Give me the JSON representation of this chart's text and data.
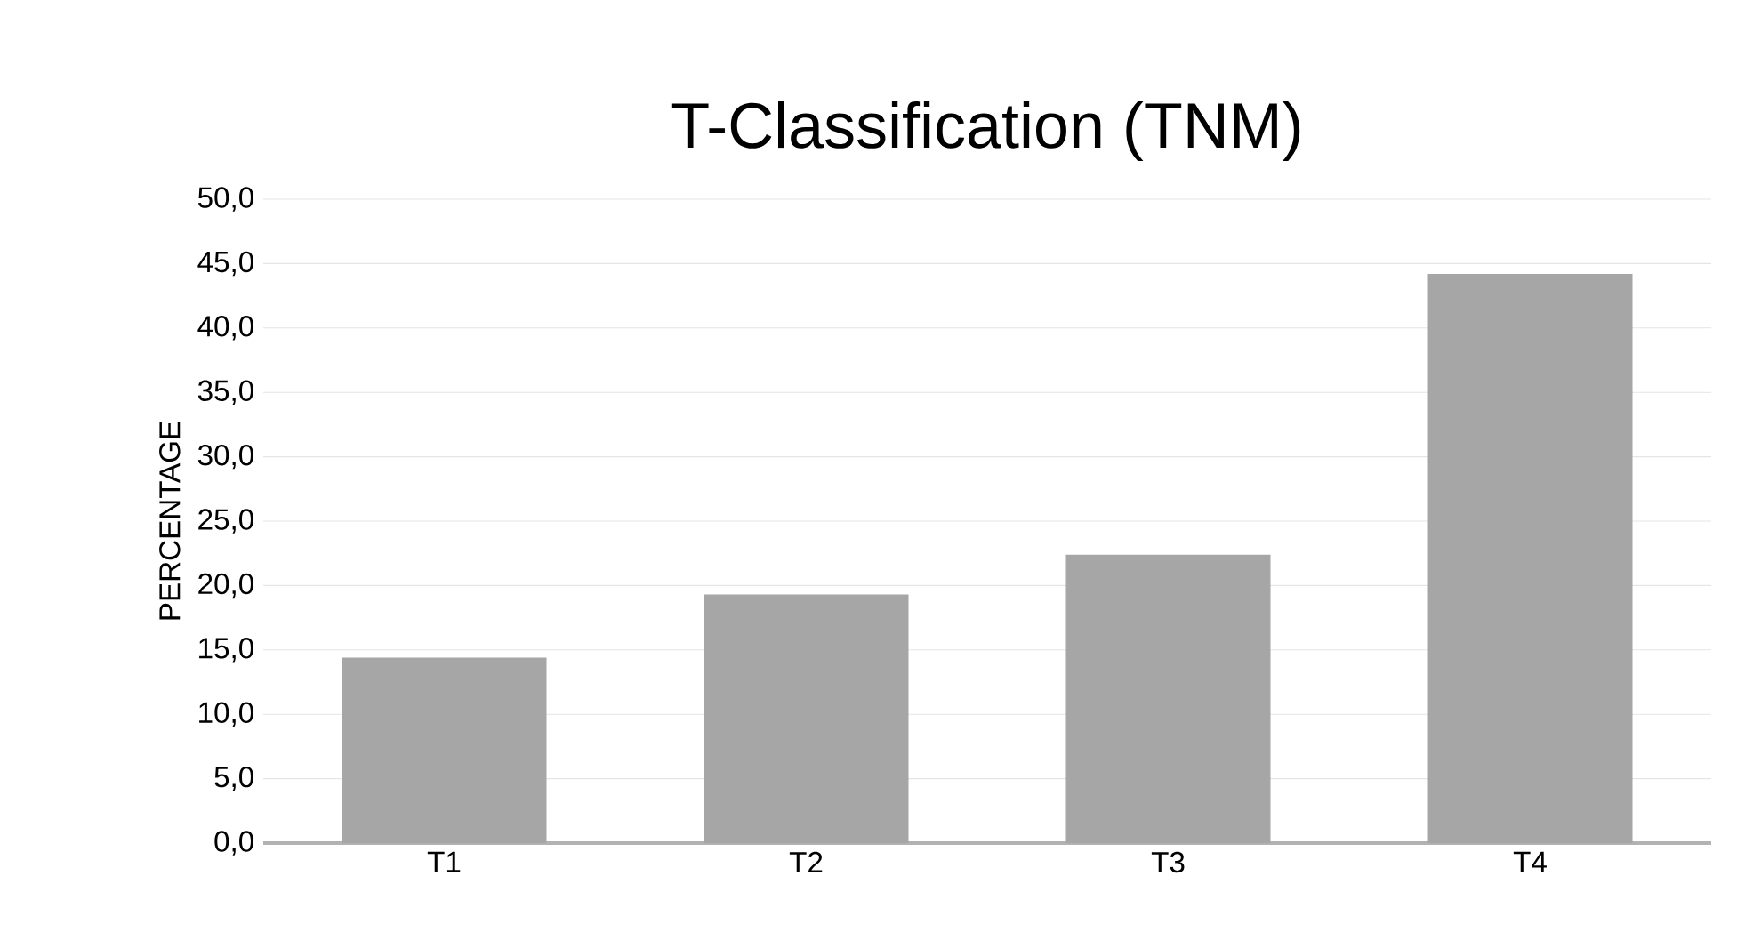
{
  "chart_data": {
    "type": "bar",
    "title": "T-Classification (TNM)",
    "ylabel": "PERCENTAGE",
    "categories": [
      "T1",
      "T2",
      "T3",
      "T4"
    ],
    "values": [
      14.4,
      19.3,
      22.4,
      44.2
    ],
    "color": "#a6a6a6",
    "ylim": [
      0,
      50
    ],
    "yticks": [
      {
        "value": 0,
        "label": "0,0"
      },
      {
        "value": 5,
        "label": "5,0"
      },
      {
        "value": 10,
        "label": "10,0"
      },
      {
        "value": 15,
        "label": "15,0"
      },
      {
        "value": 20,
        "label": "20,0"
      },
      {
        "value": 25,
        "label": "25,0"
      },
      {
        "value": 30,
        "label": "30,0"
      },
      {
        "value": 35,
        "label": "35,0"
      },
      {
        "value": 40,
        "label": "40,0"
      },
      {
        "value": 45,
        "label": "45,0"
      },
      {
        "value": 50,
        "label": "50,0"
      }
    ],
    "grid": "y"
  }
}
